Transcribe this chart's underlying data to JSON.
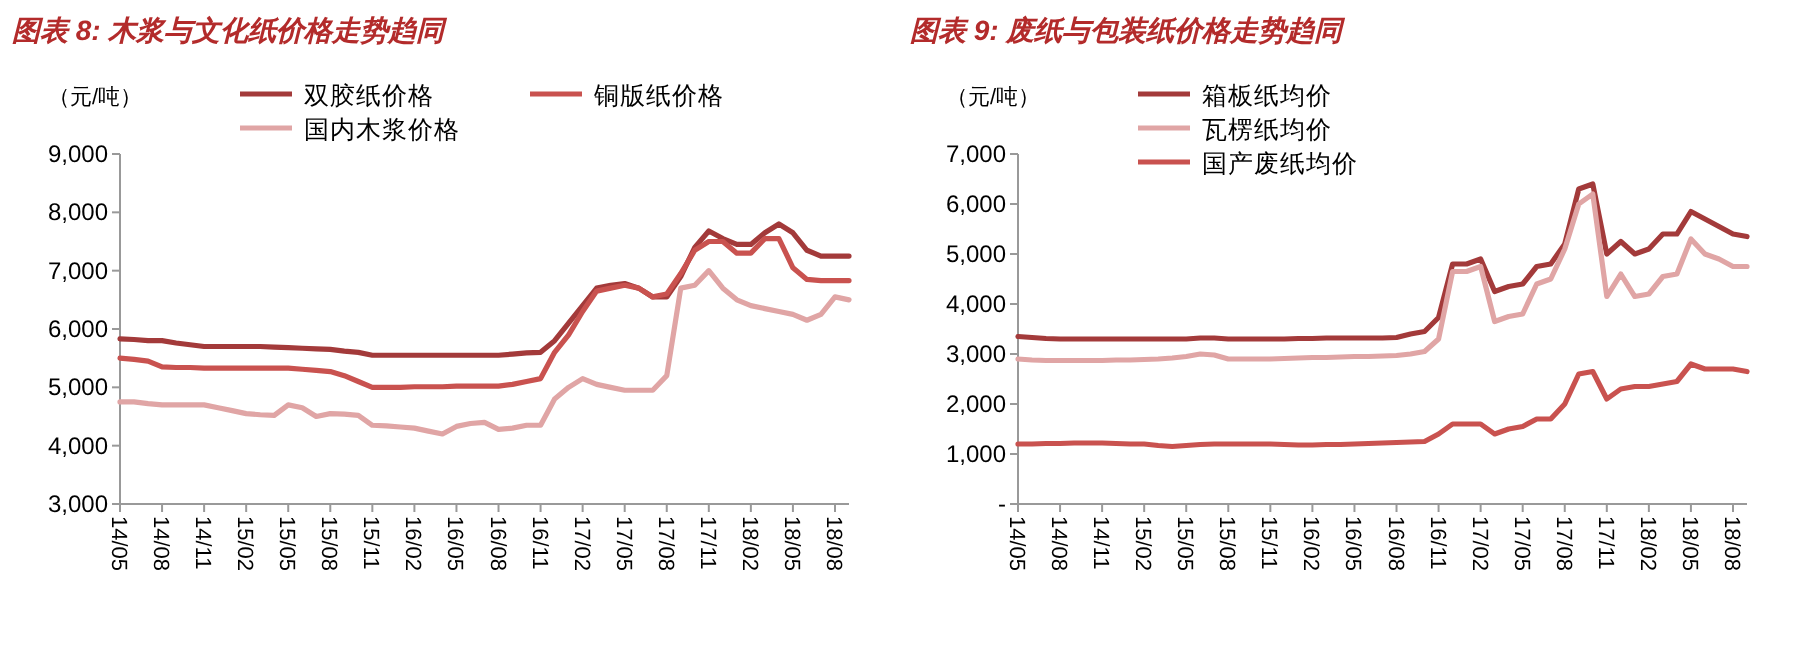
{
  "chart_data": [
    {
      "type": "line",
      "title": "图表 8: 木浆与文化纸价格走势趋同",
      "ylabel": "（元/吨）",
      "legend": "top",
      "grid": false,
      "line_style": "solid",
      "categories": [
        "14/05",
        null,
        null,
        "14/08",
        null,
        null,
        "14/11",
        null,
        null,
        "15/02",
        null,
        null,
        "15/05",
        null,
        null,
        "15/08",
        null,
        null,
        "15/11",
        null,
        null,
        "16/02",
        null,
        null,
        "16/05",
        null,
        null,
        "16/08",
        null,
        null,
        "16/11",
        null,
        null,
        "17/02",
        null,
        null,
        "17/05",
        null,
        null,
        "17/08",
        null,
        null,
        "17/11",
        null,
        null,
        "18/02",
        null,
        null,
        "18/05",
        null,
        null,
        "18/08",
        null
      ],
      "series": [
        {
          "name": "双胶纸价格",
          "color": "#a33a3a",
          "values": [
            5830,
            5820,
            5800,
            5800,
            5760,
            5730,
            5700,
            5700,
            5700,
            5700,
            5700,
            5690,
            5680,
            5670,
            5660,
            5650,
            5620,
            5600,
            5550,
            5550,
            5550,
            5550,
            5550,
            5550,
            5550,
            5550,
            5550,
            5550,
            5570,
            5590,
            5600,
            5800,
            6100,
            6400,
            6700,
            6750,
            6780,
            6700,
            6550,
            6550,
            6900,
            7400,
            7680,
            7550,
            7450,
            7450,
            7650,
            7800,
            7650,
            7350,
            7250,
            7250,
            7250
          ]
        },
        {
          "name": "铜版纸价格",
          "color": "#c9524f",
          "values": [
            5500,
            5480,
            5450,
            5350,
            5340,
            5340,
            5330,
            5330,
            5330,
            5330,
            5330,
            5330,
            5330,
            5310,
            5290,
            5270,
            5200,
            5100,
            5000,
            5000,
            5000,
            5010,
            5010,
            5010,
            5020,
            5020,
            5020,
            5020,
            5050,
            5100,
            5150,
            5600,
            5900,
            6300,
            6650,
            6700,
            6750,
            6700,
            6550,
            6600,
            6950,
            7350,
            7500,
            7500,
            7300,
            7300,
            7550,
            7550,
            7050,
            6850,
            6830,
            6830,
            6830
          ]
        },
        {
          "name": "国内木浆价格",
          "color": "#e0a5a5",
          "values": [
            4750,
            4750,
            4720,
            4700,
            4700,
            4700,
            4700,
            4650,
            4600,
            4550,
            4530,
            4520,
            4700,
            4650,
            4500,
            4550,
            4540,
            4520,
            4350,
            4340,
            4320,
            4300,
            4250,
            4200,
            4330,
            4380,
            4400,
            4280,
            4300,
            4350,
            4350,
            4800,
            5000,
            5150,
            5050,
            5000,
            4950,
            4950,
            4950,
            5200,
            6700,
            6750,
            7000,
            6700,
            6500,
            6400,
            6350,
            6300,
            6250,
            6150,
            6250,
            6550,
            6500
          ]
        }
      ],
      "ylim": [
        3000,
        9000
      ],
      "yticks": [
        {
          "value": 3000,
          "label": "3,000"
        },
        {
          "value": 4000,
          "label": "4,000"
        },
        {
          "value": 5000,
          "label": "5,000"
        },
        {
          "value": 6000,
          "label": "6,000"
        },
        {
          "value": 7000,
          "label": "7,000"
        },
        {
          "value": 8000,
          "label": "8,000"
        },
        {
          "value": 9000,
          "label": "9,000"
        }
      ]
    },
    {
      "type": "line",
      "title": "图表 9: 废纸与包装纸价格走势趋同",
      "ylabel": "（元/吨）",
      "legend": "top",
      "grid": false,
      "line_style": "solid",
      "categories": [
        "14/05",
        null,
        null,
        "14/08",
        null,
        null,
        "14/11",
        null,
        null,
        "15/02",
        null,
        null,
        "15/05",
        null,
        null,
        "15/08",
        null,
        null,
        "15/11",
        null,
        null,
        "16/02",
        null,
        null,
        "16/05",
        null,
        null,
        "16/08",
        null,
        null,
        "16/11",
        null,
        null,
        "17/02",
        null,
        null,
        "17/05",
        null,
        null,
        "17/08",
        null,
        null,
        "17/11",
        null,
        null,
        "18/02",
        null,
        null,
        "18/05",
        null,
        null,
        "18/08",
        null
      ],
      "series": [
        {
          "name": "箱板纸均价",
          "color": "#a33a3a",
          "values": [
            3350,
            3330,
            3310,
            3300,
            3300,
            3300,
            3300,
            3300,
            3300,
            3300,
            3300,
            3300,
            3300,
            3320,
            3320,
            3300,
            3300,
            3300,
            3300,
            3300,
            3310,
            3310,
            3320,
            3320,
            3320,
            3320,
            3320,
            3330,
            3400,
            3450,
            3730,
            4800,
            4800,
            4900,
            4250,
            4350,
            4400,
            4750,
            4800,
            5200,
            6300,
            6400,
            5000,
            5250,
            5000,
            5100,
            5400,
            5400,
            5850,
            5700,
            5550,
            5400,
            5350
          ]
        },
        {
          "name": "瓦楞纸均价",
          "color": "#e0a5a5",
          "values": [
            2900,
            2880,
            2870,
            2870,
            2870,
            2870,
            2870,
            2880,
            2880,
            2890,
            2900,
            2920,
            2950,
            3000,
            2980,
            2900,
            2900,
            2900,
            2900,
            2910,
            2920,
            2930,
            2930,
            2940,
            2950,
            2950,
            2960,
            2970,
            3000,
            3050,
            3300,
            4650,
            4650,
            4750,
            3650,
            3750,
            3800,
            4400,
            4500,
            5100,
            6000,
            6200,
            4150,
            4600,
            4150,
            4200,
            4550,
            4600,
            5300,
            5000,
            4900,
            4750,
            4750
          ]
        },
        {
          "name": "国产废纸均价",
          "color": "#c9524f",
          "values": [
            1200,
            1200,
            1210,
            1210,
            1220,
            1220,
            1220,
            1210,
            1200,
            1200,
            1170,
            1150,
            1170,
            1190,
            1200,
            1200,
            1200,
            1200,
            1200,
            1190,
            1180,
            1180,
            1190,
            1190,
            1200,
            1210,
            1220,
            1230,
            1240,
            1250,
            1400,
            1600,
            1600,
            1600,
            1400,
            1500,
            1550,
            1700,
            1700,
            2000,
            2600,
            2650,
            2100,
            2300,
            2350,
            2350,
            2400,
            2450,
            2800,
            2700,
            2700,
            2700,
            2650
          ]
        }
      ],
      "ylim": [
        0,
        7000
      ],
      "yticks": [
        {
          "value": 0,
          "label": "-"
        },
        {
          "value": 1000,
          "label": "1,000"
        },
        {
          "value": 2000,
          "label": "2,000"
        },
        {
          "value": 3000,
          "label": "3,000"
        },
        {
          "value": 4000,
          "label": "4,000"
        },
        {
          "value": 5000,
          "label": "5,000"
        },
        {
          "value": 6000,
          "label": "6,000"
        },
        {
          "value": 7000,
          "label": "7,000"
        }
      ]
    }
  ]
}
